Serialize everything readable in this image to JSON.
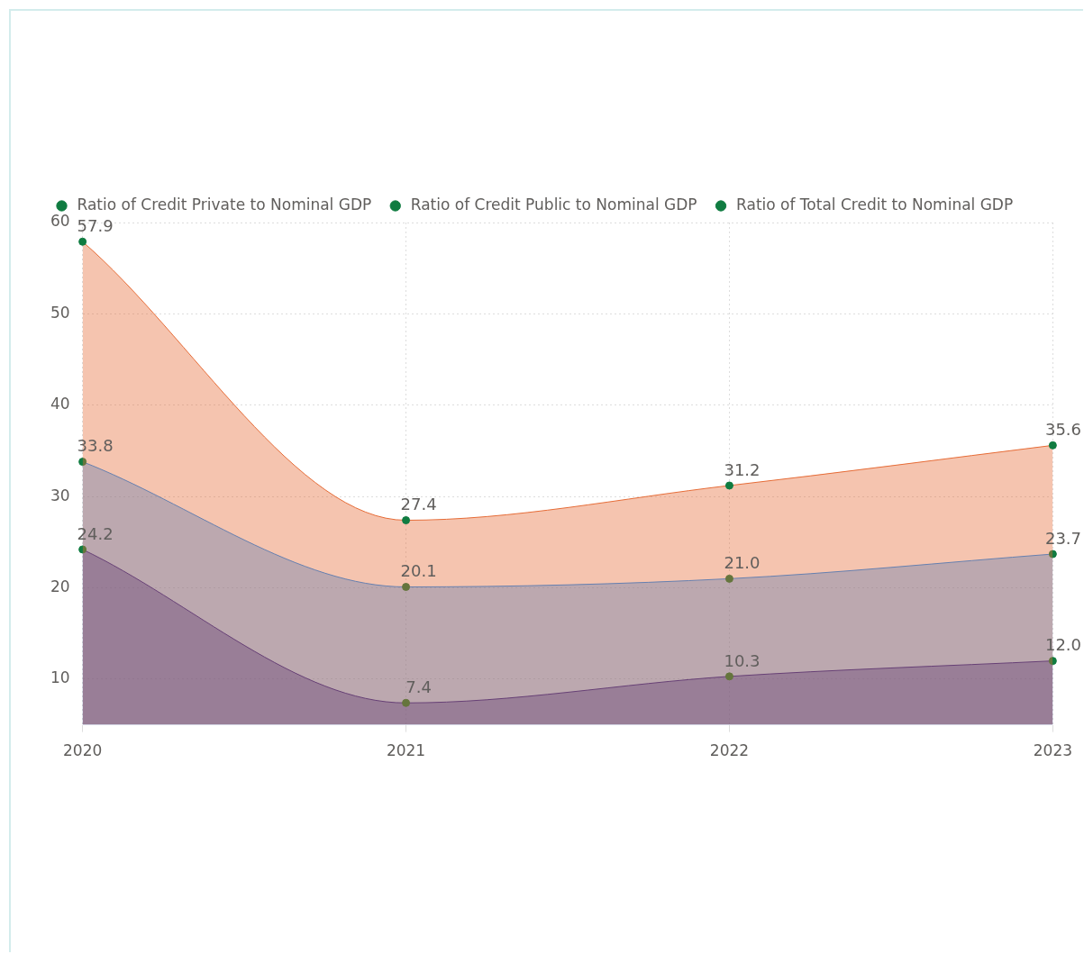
{
  "chart_data": {
    "type": "area",
    "categories": [
      "2020",
      "2021",
      "2022",
      "2023"
    ],
    "series": [
      {
        "name": "Ratio of Credit Private to Nominal GDP",
        "color": "#118dff",
        "values": [
          33.8,
          20.1,
          21.0,
          23.7
        ],
        "value_labels": [
          "33.8",
          "20.1",
          "21.0",
          "23.7"
        ]
      },
      {
        "name": "Ratio of Credit Public to Nominal GDP",
        "color": "#12239e",
        "values": [
          24.2,
          7.4,
          10.3,
          12.0
        ],
        "value_labels": [
          "24.2",
          "7.4",
          "10.3",
          "12.0"
        ]
      },
      {
        "name": "Ratio of Total Credit to Nominal GDP",
        "color": "#e66c37",
        "values": [
          57.9,
          27.4,
          31.2,
          35.6
        ],
        "value_labels": [
          "57.9",
          "27.4",
          "31.2",
          "35.6"
        ]
      }
    ],
    "ylim": [
      5,
      60
    ],
    "yticks": [
      10,
      20,
      30,
      40,
      50,
      60
    ],
    "grid": true,
    "legend": "top left",
    "marker": "circle"
  }
}
